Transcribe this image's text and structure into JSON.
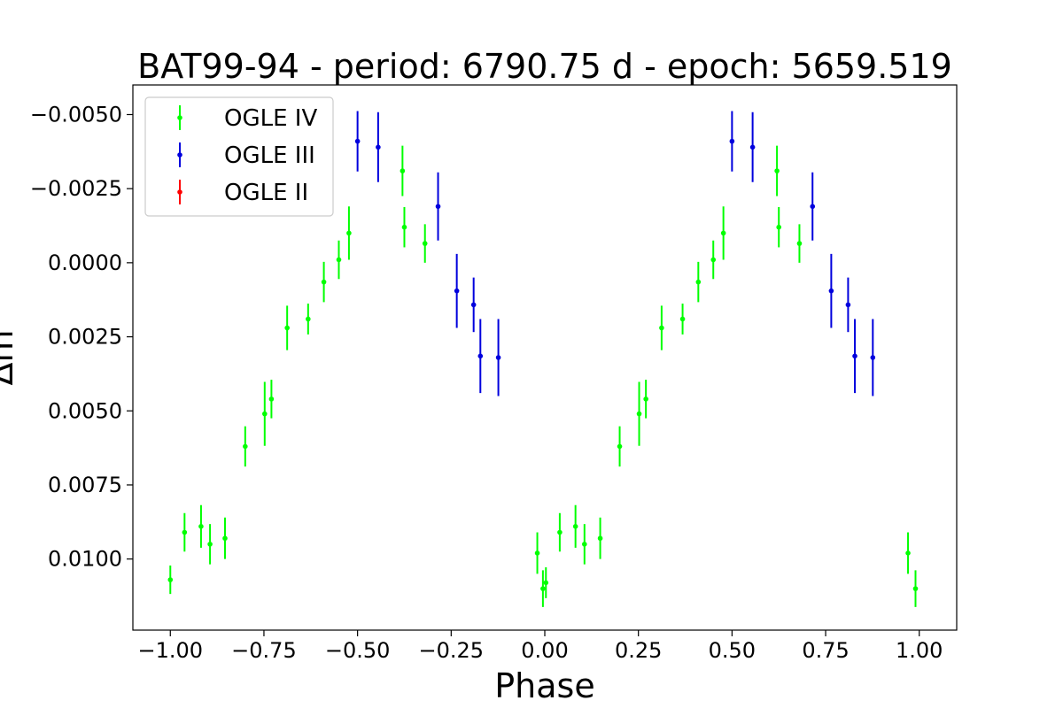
{
  "chart_data": {
    "type": "scatter",
    "title": "BAT99-94 - period: 6790.75 d - epoch: 5659.519",
    "xlabel": "Phase",
    "ylabel": "Δm",
    "xlim": [
      -1.1,
      1.1
    ],
    "ylim": [
      0.0124,
      -0.006
    ],
    "y_inverted": true,
    "grid": false,
    "legend_position": "top-left",
    "x_ticks": [
      {
        "value": -1.0,
        "label": "−1.00"
      },
      {
        "value": -0.75,
        "label": "−0.75"
      },
      {
        "value": -0.5,
        "label": "−0.50"
      },
      {
        "value": -0.25,
        "label": "−0.25"
      },
      {
        "value": 0.0,
        "label": "0.00"
      },
      {
        "value": 0.25,
        "label": "0.25"
      },
      {
        "value": 0.5,
        "label": "0.50"
      },
      {
        "value": 0.75,
        "label": "0.75"
      },
      {
        "value": 1.0,
        "label": "1.00"
      }
    ],
    "y_ticks": [
      {
        "value": -0.005,
        "label": "−0.0050"
      },
      {
        "value": -0.0025,
        "label": "−0.0025"
      },
      {
        "value": 0.0,
        "label": "0.0000"
      },
      {
        "value": 0.0025,
        "label": "0.0025"
      },
      {
        "value": 0.005,
        "label": "0.0050"
      },
      {
        "value": 0.0075,
        "label": "0.0075"
      },
      {
        "value": 0.01,
        "label": "0.0100"
      }
    ],
    "series": [
      {
        "name": "OGLE IV",
        "color": "#00ff00",
        "points": [
          {
            "x": -1.0,
            "y": 0.0107,
            "err": 0.00048
          },
          {
            "x": -0.962,
            "y": 0.0091,
            "err": 0.00065
          },
          {
            "x": -0.918,
            "y": 0.0089,
            "err": 0.00072
          },
          {
            "x": -0.894,
            "y": 0.0095,
            "err": 0.00068
          },
          {
            "x": -0.854,
            "y": 0.0093,
            "err": 0.0007
          },
          {
            "x": -0.8,
            "y": 0.0062,
            "err": 0.00068
          },
          {
            "x": -0.748,
            "y": 0.0051,
            "err": 0.00108
          },
          {
            "x": -0.73,
            "y": 0.0046,
            "err": 0.00065
          },
          {
            "x": -0.688,
            "y": 0.0022,
            "err": 0.00075
          },
          {
            "x": -0.632,
            "y": 0.0019,
            "err": 0.00052
          },
          {
            "x": -0.59,
            "y": 0.00065,
            "err": 0.00068
          },
          {
            "x": -0.55,
            "y": -0.0001,
            "err": 0.00065
          },
          {
            "x": -0.523,
            "y": -0.001,
            "err": 0.0009
          },
          {
            "x": -0.38,
            "y": -0.0031,
            "err": 0.00085
          },
          {
            "x": -0.375,
            "y": -0.0012,
            "err": 0.00068
          },
          {
            "x": -0.32,
            "y": -0.00065,
            "err": 0.00065
          },
          {
            "x": -0.02,
            "y": 0.0098,
            "err": 0.0007
          },
          {
            "x": -0.005,
            "y": 0.011,
            "err": 0.00062
          },
          {
            "x": 0.003,
            "y": 0.0108,
            "err": 0.00052
          },
          {
            "x": 0.04,
            "y": 0.0091,
            "err": 0.00065
          },
          {
            "x": 0.082,
            "y": 0.0089,
            "err": 0.00072
          },
          {
            "x": 0.106,
            "y": 0.0095,
            "err": 0.00068
          },
          {
            "x": 0.148,
            "y": 0.0093,
            "err": 0.0007
          },
          {
            "x": 0.2,
            "y": 0.0062,
            "err": 0.00068
          },
          {
            "x": 0.252,
            "y": 0.0051,
            "err": 0.00108
          },
          {
            "x": 0.27,
            "y": 0.0046,
            "err": 0.00065
          },
          {
            "x": 0.312,
            "y": 0.0022,
            "err": 0.00075
          },
          {
            "x": 0.368,
            "y": 0.0019,
            "err": 0.00052
          },
          {
            "x": 0.41,
            "y": 0.00065,
            "err": 0.00068
          },
          {
            "x": 0.45,
            "y": -0.0001,
            "err": 0.00065
          },
          {
            "x": 0.477,
            "y": -0.001,
            "err": 0.0009
          },
          {
            "x": 0.62,
            "y": -0.0031,
            "err": 0.00085
          },
          {
            "x": 0.625,
            "y": -0.0012,
            "err": 0.00068
          },
          {
            "x": 0.68,
            "y": -0.00065,
            "err": 0.00065
          },
          {
            "x": 0.97,
            "y": 0.0098,
            "err": 0.0007
          },
          {
            "x": 0.99,
            "y": 0.011,
            "err": 0.00062
          }
        ]
      },
      {
        "name": "OGLE III",
        "color": "#0000dd",
        "points": [
          {
            "x": -0.5,
            "y": -0.0041,
            "err": 0.00102
          },
          {
            "x": -0.445,
            "y": -0.0039,
            "err": 0.00118
          },
          {
            "x": -0.285,
            "y": -0.0019,
            "err": 0.00115
          },
          {
            "x": -0.235,
            "y": 0.00095,
            "err": 0.00125
          },
          {
            "x": -0.19,
            "y": 0.00142,
            "err": 0.00092
          },
          {
            "x": -0.172,
            "y": 0.00315,
            "err": 0.00125
          },
          {
            "x": -0.124,
            "y": 0.0032,
            "err": 0.0013
          },
          {
            "x": 0.5,
            "y": -0.0041,
            "err": 0.00102
          },
          {
            "x": 0.555,
            "y": -0.0039,
            "err": 0.00118
          },
          {
            "x": 0.715,
            "y": -0.0019,
            "err": 0.00115
          },
          {
            "x": 0.765,
            "y": 0.00095,
            "err": 0.00125
          },
          {
            "x": 0.81,
            "y": 0.00142,
            "err": 0.00092
          },
          {
            "x": 0.828,
            "y": 0.00315,
            "err": 0.00125
          },
          {
            "x": 0.876,
            "y": 0.0032,
            "err": 0.0013
          }
        ]
      },
      {
        "name": "OGLE II",
        "color": "#ff0000",
        "points": []
      }
    ]
  }
}
